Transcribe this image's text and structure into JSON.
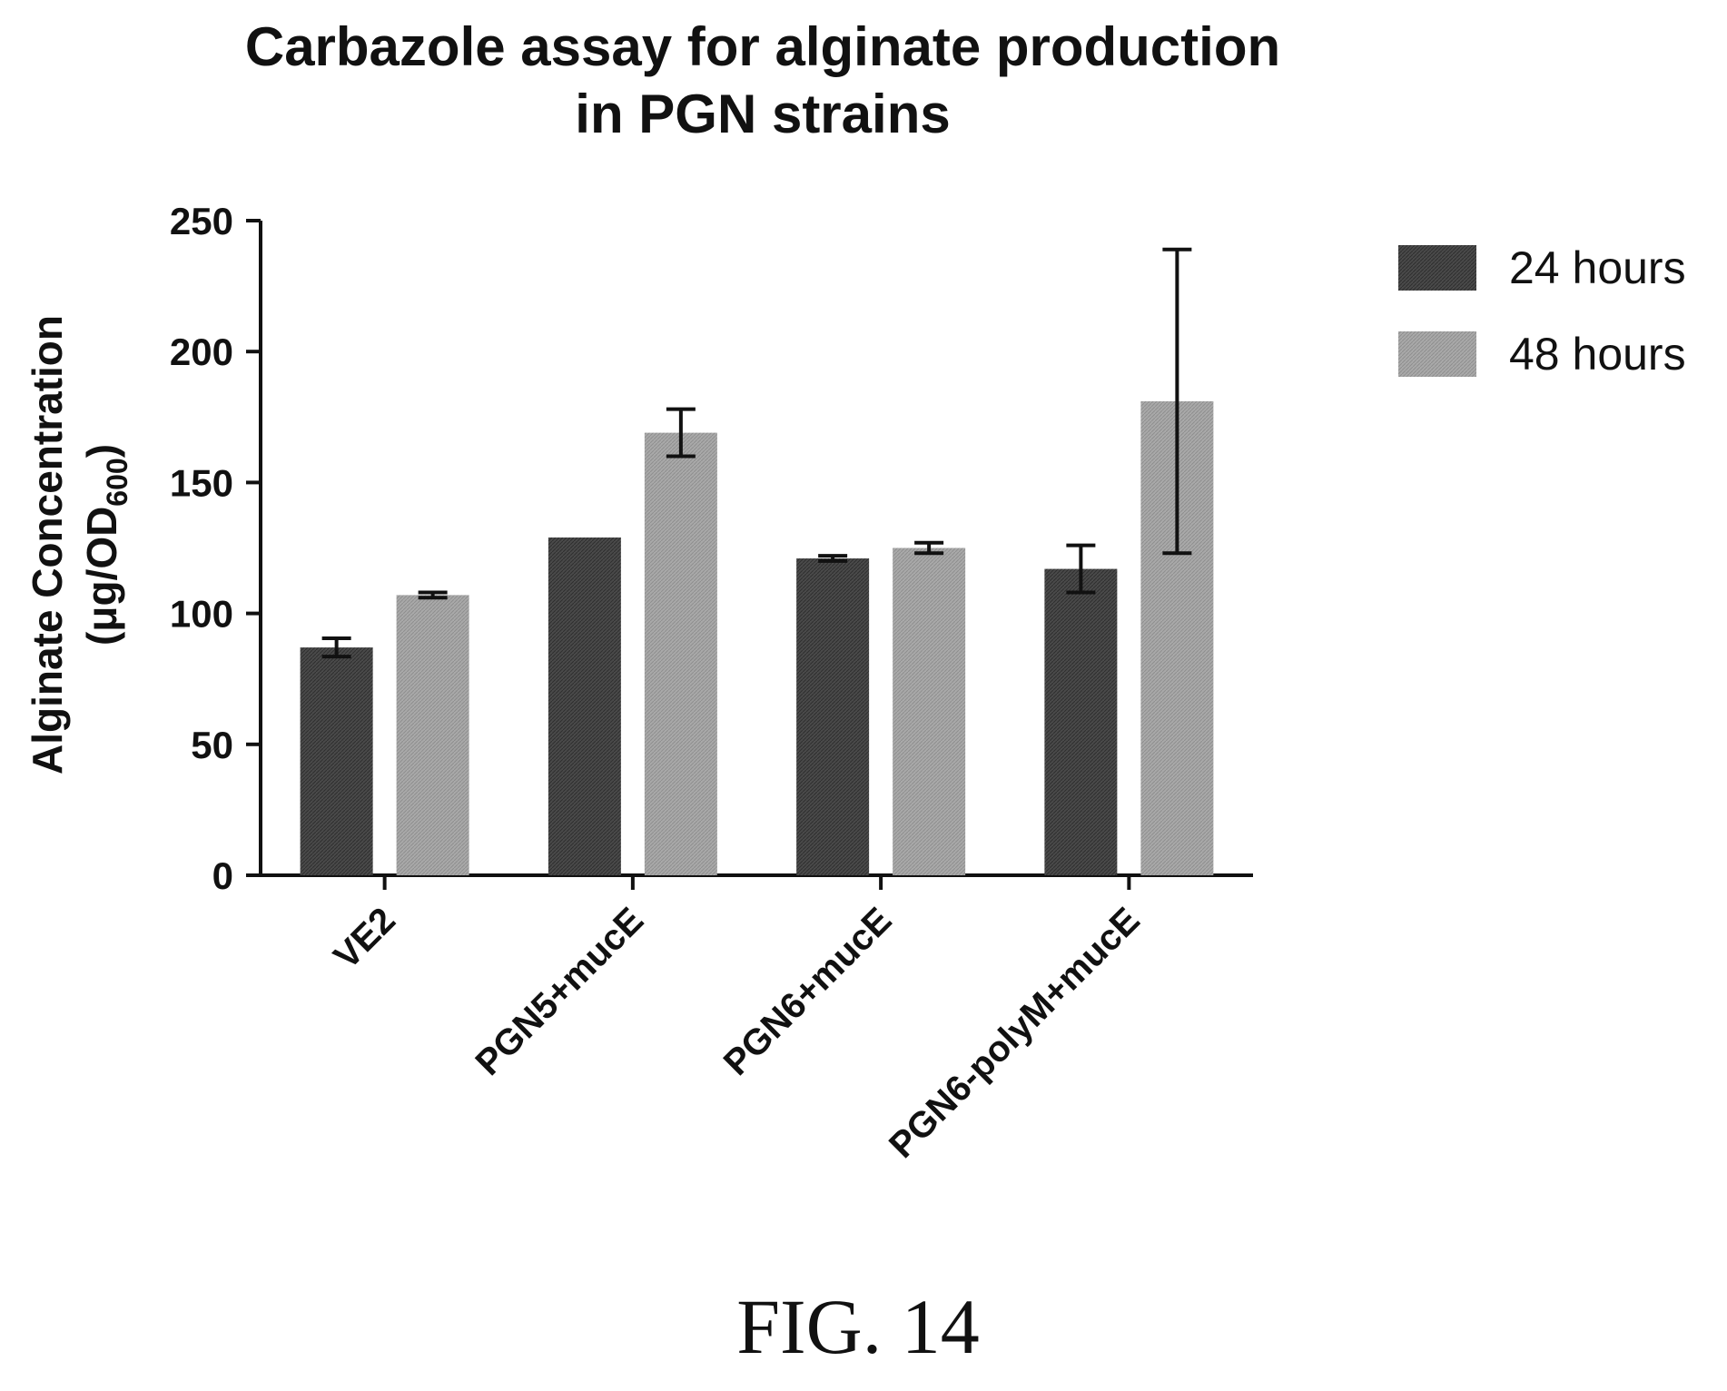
{
  "chart_data": {
    "type": "bar",
    "title_lines": [
      "Carbazole assay for alginate production",
      "in PGN strains"
    ],
    "ylabel_line1": "Alginate Concentration",
    "ylabel_line2": {
      "open": "(",
      "main": "μg/OD",
      "sub": "600",
      "close": ")"
    },
    "xlabel": "",
    "ylim": [
      0,
      250
    ],
    "yticks": [
      0,
      50,
      100,
      150,
      200,
      250
    ],
    "categories": [
      "VE2",
      "PGN5+mucE",
      "PGN6+mucE",
      "PGN6-polyM+mucE"
    ],
    "series": [
      {
        "name": "24 hours",
        "color": "#4a4a4a",
        "values": [
          87,
          129,
          121,
          117
        ],
        "errors": [
          3.5,
          0,
          1,
          9
        ]
      },
      {
        "name": "48 hours",
        "color": "#a9a9a9",
        "values": [
          107,
          169,
          125,
          181
        ],
        "errors": [
          1,
          9,
          2,
          58
        ]
      }
    ],
    "grid": false,
    "legend_position": "right"
  },
  "figure_label": "FIG. 14"
}
